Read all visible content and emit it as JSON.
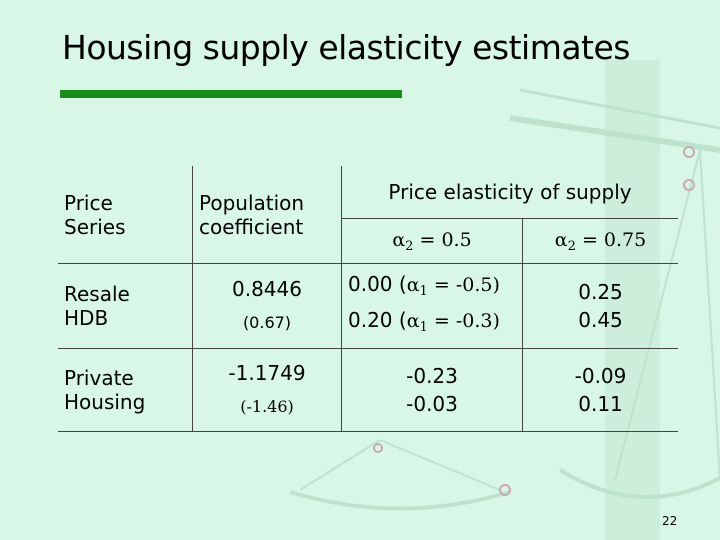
{
  "slide": {
    "title": "Housing supply elasticity estimates",
    "page_number": "22",
    "accent_color": "#1a8c1a",
    "background_color": "#d9f7e6"
  },
  "table": {
    "headers": {
      "price_series": "Price Series",
      "population_coefficient": "Population coefficient",
      "price_elasticity": "Price elasticity of supply",
      "alpha2_low": "α2 = 0.5",
      "alpha2_high": "α2 = 0.75"
    },
    "rows": [
      {
        "label": "Resale HDB",
        "coefficient": "0.8446",
        "t_stat": "(0.67)",
        "low_line1": "0.00 (α1 = -0.5)",
        "low_line2": "0.20 (α1 = -0.3)",
        "high_line1": "0.25",
        "high_line2": "0.45"
      },
      {
        "label": "Private Housing",
        "coefficient": "-1.1749",
        "t_stat": "(-1.46)",
        "low_line1": "-0.23",
        "low_line2": "-0.03",
        "high_line1": "-0.09",
        "high_line2": "0.11"
      }
    ]
  }
}
